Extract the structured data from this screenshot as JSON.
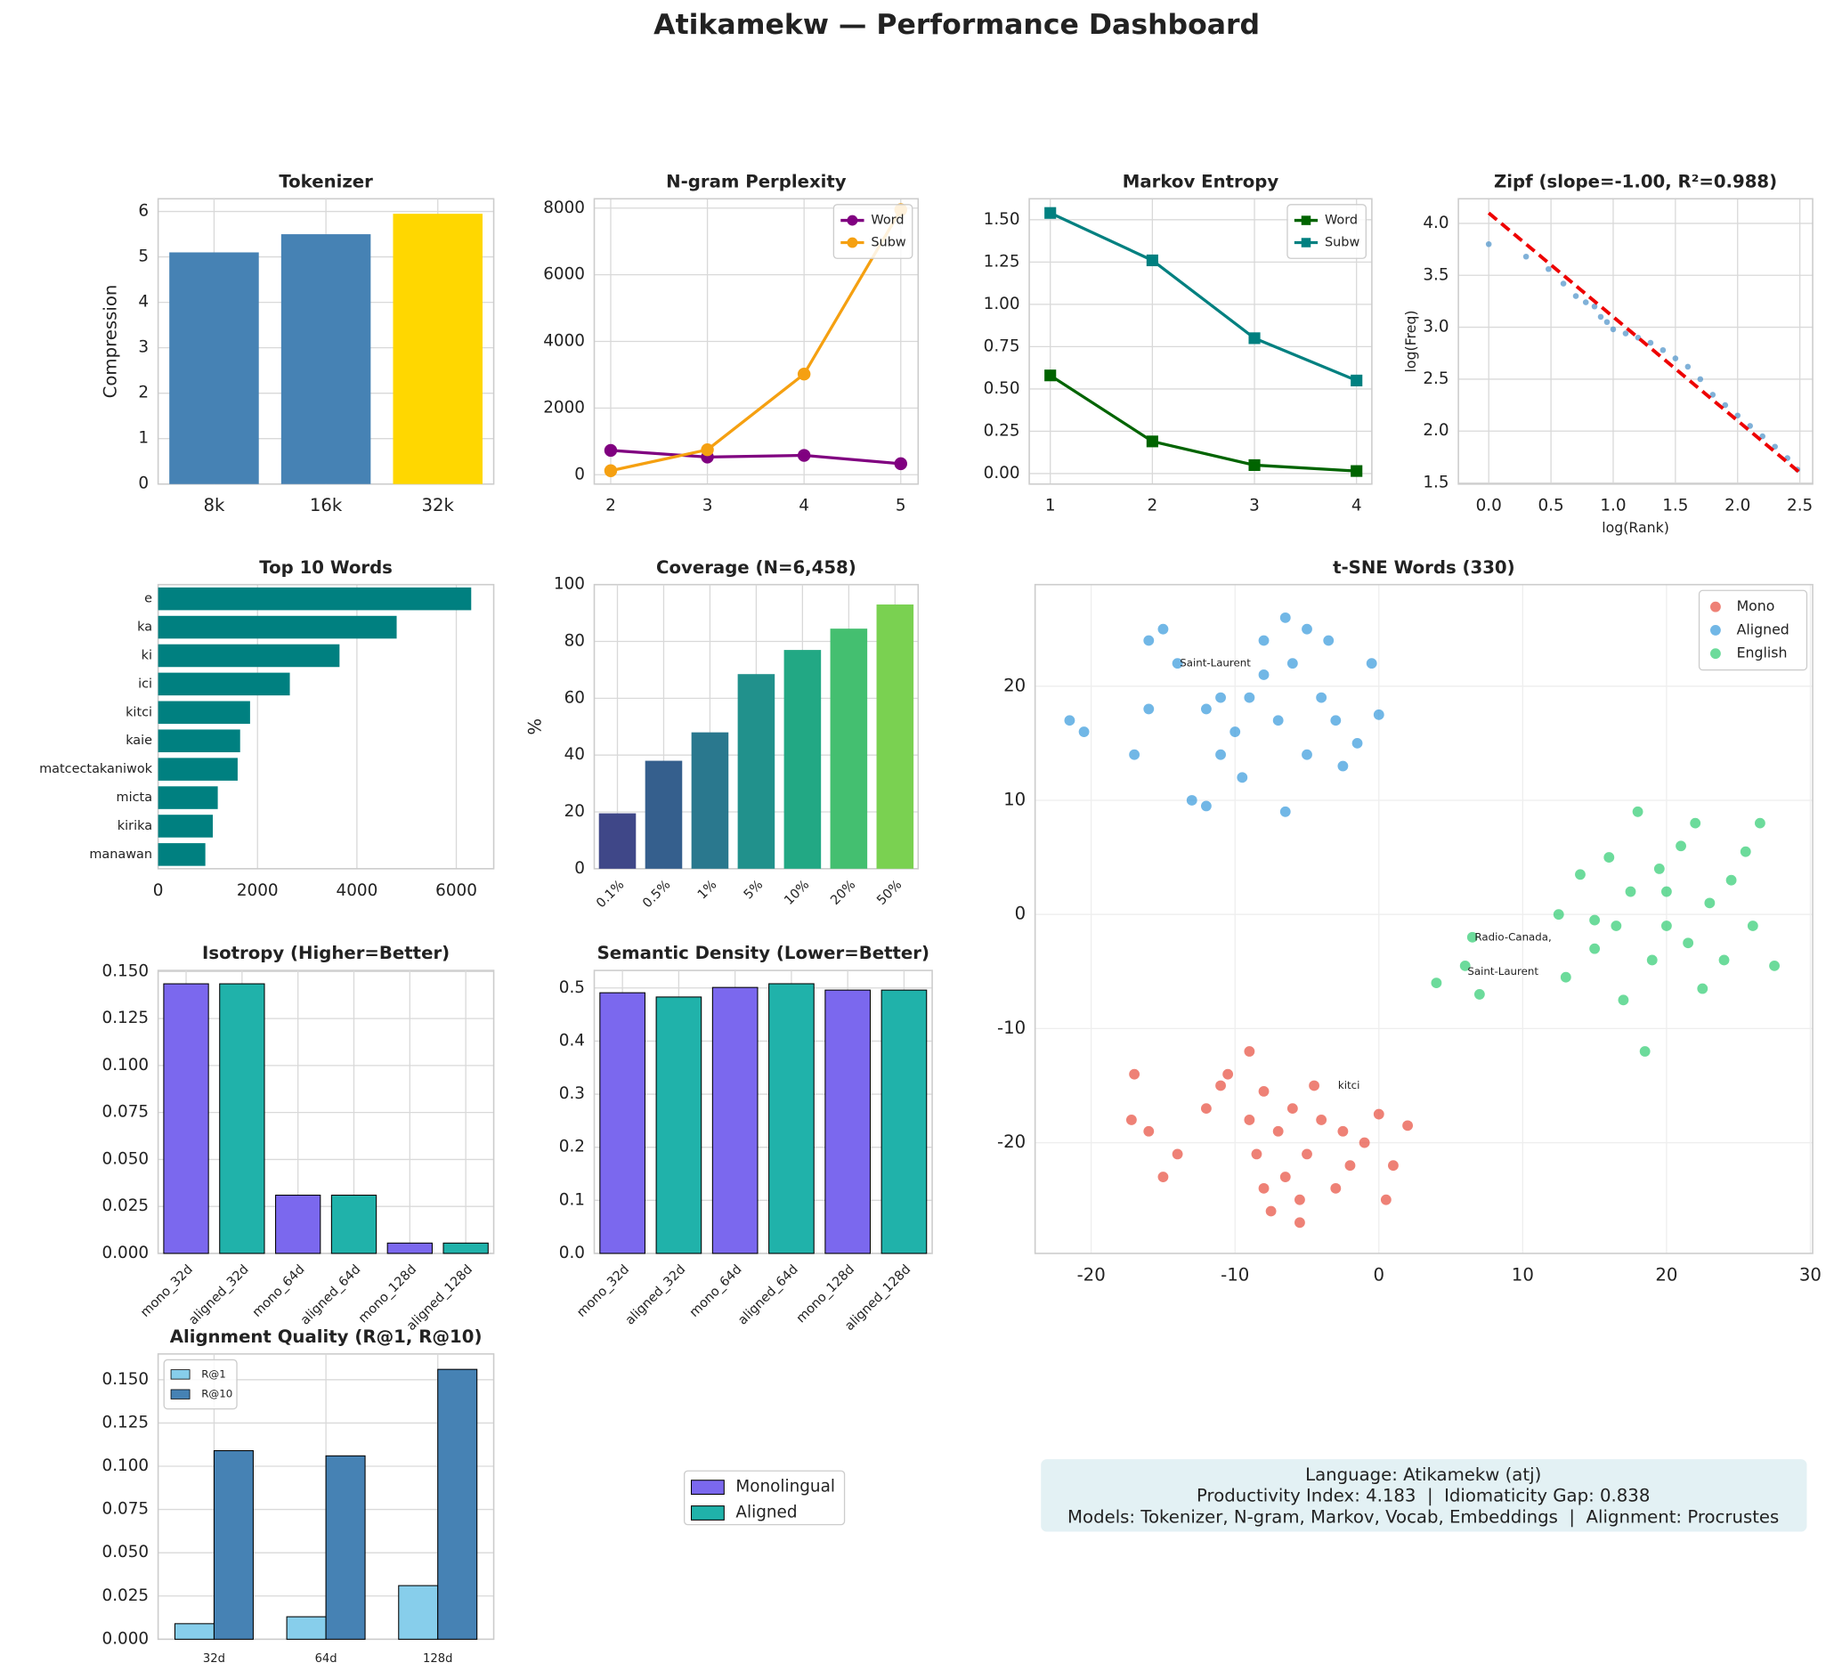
{
  "title": "Atikamekw — Performance Dashboard",
  "chart_data": [
    {
      "type": "bar",
      "title": "Tokenizer",
      "ylabel": "Compression",
      "categories": [
        "8k",
        "16k",
        "32k"
      ],
      "values": [
        5.1,
        5.5,
        5.95
      ],
      "colors": [
        "#4682b4",
        "#4682b4",
        "#ffd700"
      ],
      "ylim": [
        0,
        6.28
      ],
      "yticks": [
        0,
        1,
        2,
        3,
        4,
        5,
        6
      ],
      "grid": true
    },
    {
      "type": "line",
      "title": "N-gram Perplexity",
      "x": [
        2,
        3,
        4,
        5
      ],
      "series": [
        {
          "name": "Word",
          "color": "#800080",
          "values": [
            730,
            530,
            580,
            330
          ]
        },
        {
          "name": "Subw",
          "color": "#f5a011",
          "values": [
            120,
            750,
            3020,
            7950
          ]
        }
      ],
      "marker": "circle",
      "xlim": [
        1.83,
        5.18
      ],
      "xticks": [
        2,
        3,
        4,
        5
      ],
      "ylim": [
        -280,
        8280
      ],
      "yticks": [
        0,
        2000,
        4000,
        6000,
        8000
      ],
      "legend": "upper right",
      "grid": true
    },
    {
      "type": "line",
      "title": "Markov Entropy",
      "x": [
        1,
        2,
        3,
        4
      ],
      "series": [
        {
          "name": "Word",
          "color": "#006400",
          "values": [
            0.58,
            0.19,
            0.05,
            0.015
          ]
        },
        {
          "name": "Subw",
          "color": "#008080",
          "values": [
            1.54,
            1.26,
            0.8,
            0.55
          ]
        }
      ],
      "marker": "square",
      "xlim": [
        0.794,
        4.15
      ],
      "xticks": [
        1,
        2,
        3,
        4
      ],
      "ylim": [
        -0.062,
        1.624
      ],
      "yticks": [
        {
          "value": 0,
          "label": "0.00"
        },
        {
          "value": 0.25,
          "label": "0.25"
        },
        {
          "value": 0.5,
          "label": "0.50"
        },
        {
          "value": 0.75,
          "label": "0.75"
        },
        {
          "value": 1,
          "label": "1.00"
        },
        {
          "value": 1.25,
          "label": "1.25"
        },
        {
          "value": 1.5,
          "label": "1.50"
        }
      ],
      "legend": "upper right",
      "grid": true
    },
    {
      "type": "scatter",
      "title": "Zipf (slope=-1.00, R²=0.988)",
      "xlabel": "log(Rank)",
      "ylabel": "log(Freq)",
      "series": [
        {
          "color": "#4a90c8",
          "x": [
            0,
            0.3,
            0.48,
            0.6,
            0.7,
            0.78,
            0.85,
            0.9,
            0.95,
            1.0,
            1.1,
            1.2,
            1.3,
            1.4,
            1.5,
            1.6,
            1.7,
            1.8,
            1.9,
            2.0,
            2.1,
            2.2,
            2.3,
            2.4,
            2.48
          ],
          "values": [
            3.8,
            3.68,
            3.56,
            3.42,
            3.3,
            3.24,
            3.2,
            3.1,
            3.05,
            2.98,
            2.94,
            2.9,
            2.85,
            2.78,
            2.7,
            2.62,
            2.5,
            2.35,
            2.25,
            2.15,
            2.05,
            1.95,
            1.85,
            1.74,
            1.63
          ]
        }
      ],
      "fit_line": {
        "color": "#ee0000",
        "x": [
          0,
          2.5
        ],
        "values": [
          4.1,
          1.6
        ]
      },
      "point_size": 2.5,
      "xlim": [
        -0.244,
        2.603
      ],
      "xticks": [
        {
          "value": 0,
          "label": "0.0"
        },
        {
          "value": 0.5,
          "label": "0.5"
        },
        {
          "value": 1,
          "label": "1.0"
        },
        {
          "value": 1.5,
          "label": "1.5"
        },
        {
          "value": 2,
          "label": "2.0"
        },
        {
          "value": 2.5,
          "label": "2.5"
        }
      ],
      "ylim": [
        1.49,
        4.237
      ],
      "yticks": [
        {
          "value": 1.5,
          "label": "1.5"
        },
        {
          "value": 2,
          "label": "2.0"
        },
        {
          "value": 2.5,
          "label": "2.5"
        },
        {
          "value": 3,
          "label": "3.0"
        },
        {
          "value": 3.5,
          "label": "3.5"
        },
        {
          "value": 4,
          "label": "4.0"
        }
      ],
      "grid": true
    },
    {
      "type": "barh",
      "title": "Top 10 Words",
      "categories": [
        "e",
        "ka",
        "ki",
        "ici",
        "kitci",
        "kaie",
        "matcectakaniwok",
        "micta",
        "kirika",
        "manawan"
      ],
      "values": [
        6300,
        4800,
        3650,
        2650,
        1850,
        1650,
        1600,
        1200,
        1100,
        950
      ],
      "color": "#008080",
      "xlim": [
        0,
        6753
      ],
      "xticks": [
        0,
        2000,
        4000,
        6000
      ],
      "grid": true
    },
    {
      "type": "bar",
      "title": "Coverage (N=6,458)",
      "ylabel": "%",
      "categories": [
        "0.1%",
        "0.5%",
        "1%",
        "5%",
        "10%",
        "20%",
        "50%"
      ],
      "values": [
        19.5,
        38,
        48,
        68.5,
        77,
        84.5,
        93
      ],
      "colors": [
        "#3f4788",
        "#355f8d",
        "#2a788e",
        "#21918c",
        "#22a884",
        "#44bf70",
        "#7ad151"
      ],
      "xtick_rotation": 45,
      "ylim": [
        0,
        100
      ],
      "yticks": [
        0,
        20,
        40,
        60,
        80,
        100
      ],
      "grid": true
    },
    {
      "type": "scatter",
      "title": "t-SNE Words (330)",
      "series": [
        {
          "name": "Mono",
          "color": "#e74c3c",
          "x": [
            -17,
            -17.2,
            -16,
            -15,
            -14,
            -12,
            -11,
            -10.5,
            -9,
            -9,
            -8.5,
            -8,
            -7.5,
            -7,
            -6.5,
            -6,
            -5.5,
            -5,
            -4.5,
            -4,
            -3,
            -2.5,
            -2,
            -1,
            0,
            0.5,
            1,
            2,
            -5.5,
            -8
          ],
          "values": [
            -14,
            -18,
            -19,
            -23,
            -21,
            -17,
            -15,
            -14,
            -12,
            -18,
            -21,
            -24,
            -26,
            -19,
            -23,
            -17,
            -25,
            -21,
            -15,
            -18,
            -24,
            -19,
            -22,
            -20,
            -17.5,
            -25,
            -22,
            -18.5,
            -27,
            -15.5
          ]
        },
        {
          "name": "Aligned",
          "color": "#3498db",
          "x": [
            -21.5,
            -20.5,
            -17,
            -16,
            -16,
            -15,
            -14,
            -13,
            -12,
            -12,
            -11,
            -10,
            -9.5,
            -9,
            -8,
            -8,
            -7,
            -6.5,
            -6,
            -5,
            -5,
            -4,
            -3.5,
            -3,
            -2.5,
            -1.5,
            -0.5,
            0,
            -6.5,
            -11
          ],
          "values": [
            17,
            16,
            14,
            18,
            24,
            25,
            22,
            10,
            9.5,
            18,
            14,
            16,
            12,
            19,
            24,
            21,
            17,
            26,
            22,
            14,
            25,
            19,
            24,
            17,
            13,
            15,
            22,
            17.5,
            9,
            19
          ]
        },
        {
          "name": "English",
          "color": "#2ecc71",
          "x": [
            4,
            6.5,
            6,
            7,
            12.5,
            13,
            14,
            15,
            16,
            16.5,
            17,
            17.5,
            18,
            18.5,
            19,
            19.5,
            20,
            21,
            21.5,
            22,
            22.5,
            23,
            24,
            24.5,
            25.5,
            26,
            26.5,
            27.5,
            15,
            20
          ],
          "values": [
            -6,
            -2,
            -4.5,
            -7,
            0,
            -5.5,
            3.5,
            -3,
            5,
            -1,
            -7.5,
            2,
            9,
            -12,
            -4,
            4,
            -1,
            6,
            -2.5,
            8,
            -6.5,
            1,
            -4,
            3,
            5.5,
            -1,
            8,
            -4.5,
            -0.5,
            2
          ]
        }
      ],
      "annotations": [
        {
          "text": "Saint-Laurent",
          "x": -14,
          "y": 22,
          "color": "#3498db"
        },
        {
          "text": "Radio-Canada,",
          "x": 6.5,
          "y": -2,
          "color": "#2ecc71"
        },
        {
          "text": "Saint-Laurent",
          "x": 6,
          "y": -5,
          "color": "#2ecc71"
        },
        {
          "text": "kitci",
          "x": -3,
          "y": -15,
          "color": "#e74c3c"
        }
      ],
      "point_size": 4.5,
      "xlim": [
        -23.9,
        30.16
      ],
      "xticks": [
        -20,
        -10,
        0,
        10,
        20,
        30
      ],
      "ylim": [
        -29.7,
        28.9
      ],
      "yticks": [
        -20,
        -10,
        0,
        10,
        20
      ],
      "legend": "upper right",
      "grid": true
    },
    {
      "type": "bar",
      "title": "Isotropy (Higher=Better)",
      "categories": [
        "mono_32d",
        "aligned_32d",
        "mono_64d",
        "aligned_64d",
        "mono_128d",
        "aligned_128d"
      ],
      "values": [
        0.1435,
        0.1435,
        0.031,
        0.031,
        0.0055,
        0.0055
      ],
      "colors": [
        "#7b68ee",
        "#20b2aa",
        "#7b68ee",
        "#20b2aa",
        "#7b68ee",
        "#20b2aa"
      ],
      "edgecolor": "#000000",
      "xtick_rotation": 45,
      "ylim": [
        0,
        0.1506
      ],
      "yticks": [
        {
          "value": 0,
          "label": "0.000"
        },
        {
          "value": 0.025,
          "label": "0.025"
        },
        {
          "value": 0.05,
          "label": "0.050"
        },
        {
          "value": 0.075,
          "label": "0.075"
        },
        {
          "value": 0.1,
          "label": "0.100"
        },
        {
          "value": 0.125,
          "label": "0.125"
        },
        {
          "value": 0.15,
          "label": "0.150"
        }
      ],
      "grid": true
    },
    {
      "type": "bar",
      "title": "Semantic Density (Lower=Better)",
      "categories": [
        "mono_32d",
        "aligned_32d",
        "mono_64d",
        "aligned_64d",
        "mono_128d",
        "aligned_128d"
      ],
      "values": [
        0.491,
        0.483,
        0.501,
        0.508,
        0.496,
        0.496
      ],
      "colors": [
        "#7b68ee",
        "#20b2aa",
        "#7b68ee",
        "#20b2aa",
        "#7b68ee",
        "#20b2aa"
      ],
      "edgecolor": "#000000",
      "xtick_rotation": 45,
      "ylim": [
        0,
        0.533
      ],
      "yticks": [
        {
          "value": 0,
          "label": "0.0"
        },
        {
          "value": 0.1,
          "label": "0.1"
        },
        {
          "value": 0.2,
          "label": "0.2"
        },
        {
          "value": 0.3,
          "label": "0.3"
        },
        {
          "value": 0.4,
          "label": "0.4"
        },
        {
          "value": 0.5,
          "label": "0.5"
        }
      ],
      "grid": true
    },
    {
      "type": "grouped_bar",
      "title": "Alignment Quality (R@1, R@10)",
      "categories": [
        "32d",
        "64d",
        "128d"
      ],
      "series": [
        {
          "name": "R@1",
          "color": "#87ceeb",
          "values": [
            0.009,
            0.013,
            0.031
          ]
        },
        {
          "name": "R@10",
          "color": "#4682b4",
          "values": [
            0.109,
            0.106,
            0.156
          ]
        }
      ],
      "edgecolor": "#000000",
      "ylim": [
        0,
        0.1649
      ],
      "yticks": [
        {
          "value": 0,
          "label": "0.000"
        },
        {
          "value": 0.025,
          "label": "0.025"
        },
        {
          "value": 0.05,
          "label": "0.050"
        },
        {
          "value": 0.075,
          "label": "0.075"
        },
        {
          "value": 0.1,
          "label": "0.100"
        },
        {
          "value": 0.125,
          "label": "0.125"
        },
        {
          "value": 0.15,
          "label": "0.150"
        }
      ],
      "legend": "upper left",
      "grid": true
    }
  ],
  "shared_legend": [
    {
      "name": "Monolingual",
      "color": "#7b68ee"
    },
    {
      "name": "Aligned",
      "color": "#20b2aa"
    }
  ],
  "info_box": {
    "lines": [
      "Language: Atikamekw (atj)",
      "Productivity Index: 4.183  |  Idiomaticity Gap: 0.838",
      "Models: Tokenizer, N-gram, Markov, Vocab, Embeddings  |  Alignment: Procrustes"
    ]
  }
}
